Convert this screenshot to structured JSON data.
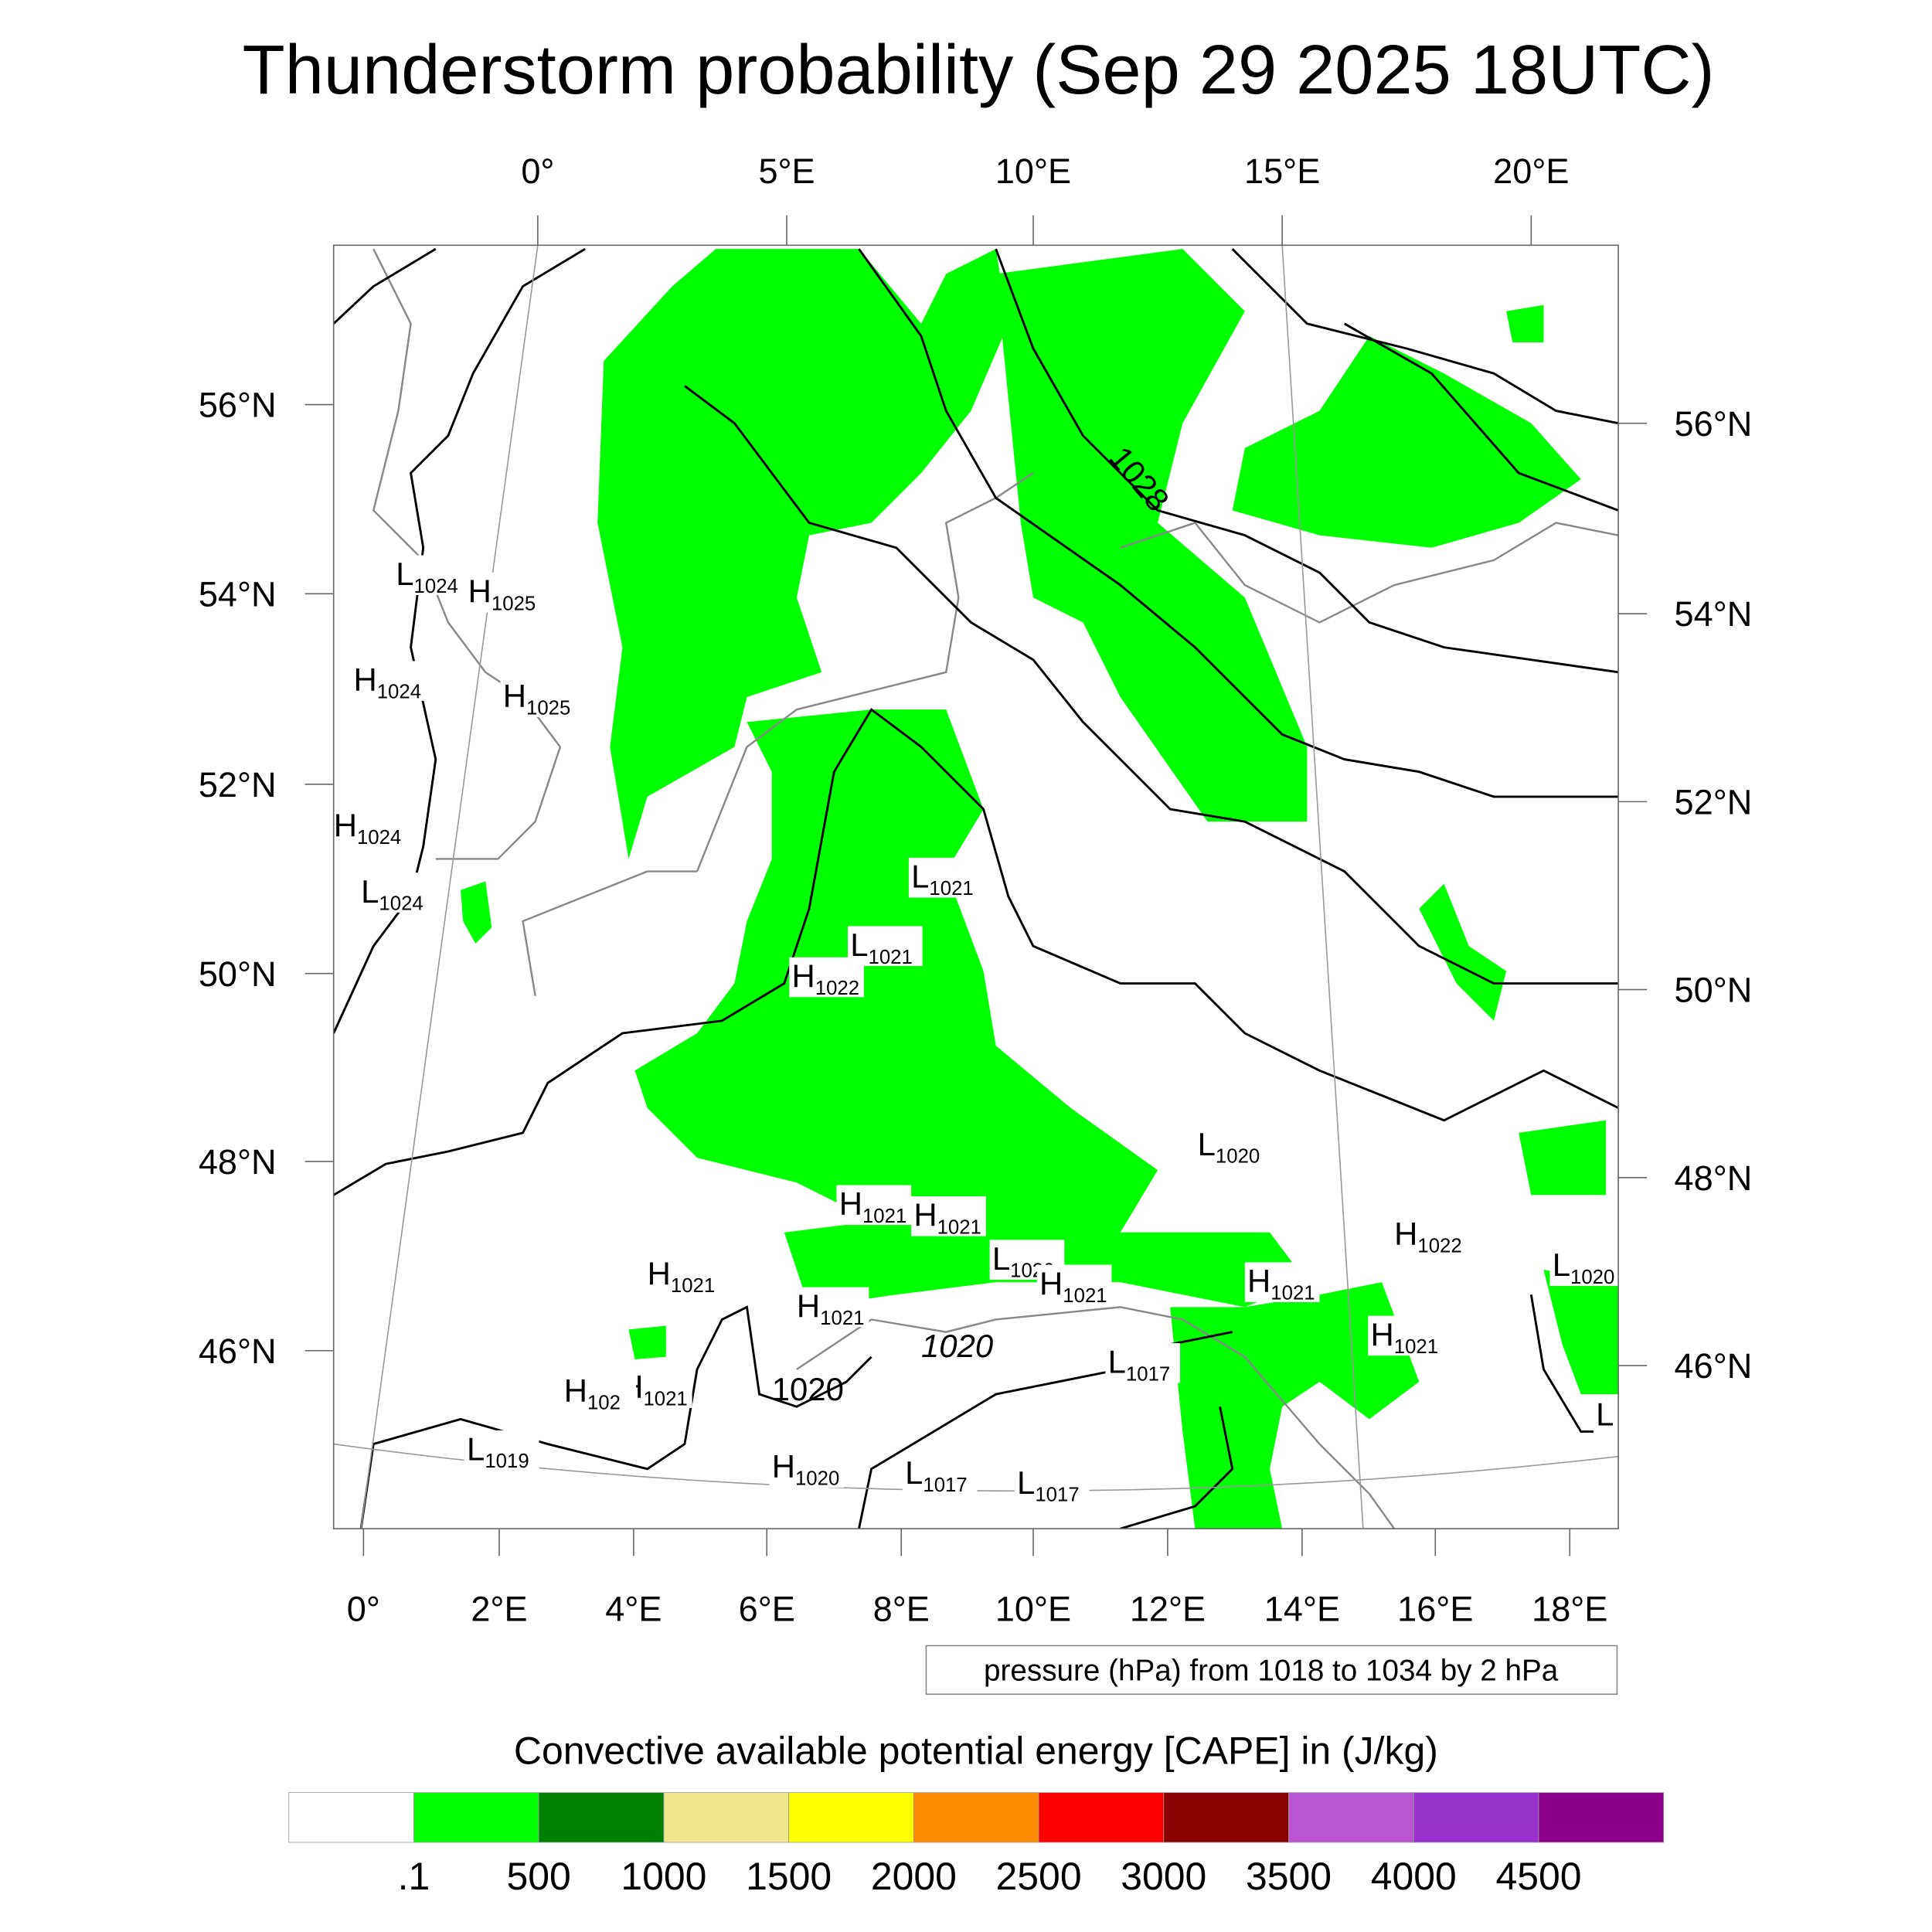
{
  "title": "Thunderstorm probability (Sep 29 2025 18UTC)",
  "axes": {
    "lon_top": [
      "0°",
      "5°E",
      "10°E",
      "15°E",
      "20°E"
    ],
    "lon_bottom": [
      "0°",
      "2°E",
      "4°E",
      "6°E",
      "8°E",
      "10°E",
      "12°E",
      "14°E",
      "16°E",
      "18°E"
    ],
    "lat_left": [
      "56°N",
      "54°N",
      "52°N",
      "50°N",
      "48°N",
      "46°N"
    ],
    "lat_right": [
      "56°N",
      "54°N",
      "52°N",
      "50°N",
      "48°N",
      "46°N"
    ]
  },
  "pressure_note": "pressure (hPa) from 1018 to 1034 by 2 hPa",
  "pressure_labels": [
    {
      "type": "L",
      "value": "1024"
    },
    {
      "type": "H",
      "value": "1025"
    },
    {
      "type": "H",
      "value": "1024"
    },
    {
      "type": "H",
      "value": "1025"
    },
    {
      "type": "H",
      "value": "1024"
    },
    {
      "type": "L",
      "value": "1024"
    },
    {
      "type": "L",
      "value": "1021"
    },
    {
      "type": "L",
      "value": "1021"
    },
    {
      "type": "H",
      "value": "1022"
    },
    {
      "type": "L",
      "value": "1020"
    },
    {
      "type": "H",
      "value": "1021"
    },
    {
      "type": "H",
      "value": "1021"
    },
    {
      "type": "L",
      "value": "1020"
    },
    {
      "type": "H",
      "value": "1021"
    },
    {
      "type": "H",
      "value": "1021"
    },
    {
      "type": "H",
      "value": "1021"
    },
    {
      "type": "H",
      "value": "1021"
    },
    {
      "type": "H",
      "value": "1022"
    },
    {
      "type": "L",
      "value": "1020"
    },
    {
      "type": "H",
      "value": "1021"
    },
    {
      "type": "L",
      "value": "1017"
    },
    {
      "type": "H",
      "value": "1021"
    },
    {
      "type": "H",
      "value": "102"
    },
    {
      "type": "L",
      "value": "1019"
    },
    {
      "type": "H",
      "value": "1020"
    },
    {
      "type": "L",
      "value": "1017"
    },
    {
      "type": "L",
      "value": "1017"
    },
    {
      "type": "L",
      "value": ""
    }
  ],
  "contour_labels": [
    "1028",
    "1020",
    "1020"
  ],
  "chart_data": {
    "type": "heatmap",
    "title": "Thunderstorm probability (Sep 29 2025 18UTC)",
    "colorbar": {
      "title": "Convective available potential energy [CAPE] in (J/kg)",
      "levels": [
        ".1",
        "500",
        "1000",
        "1500",
        "2000",
        "2500",
        "3000",
        "3500",
        "4000",
        "4500"
      ],
      "colors": [
        "#ffffff",
        "#00ff00",
        "#008000",
        "#f0e68c",
        "#ffff00",
        "#ff8c00",
        "#ff0000",
        "#8b0000",
        "#ba55d3",
        "#9932cc",
        "#8b008b"
      ]
    },
    "lon_range": [
      0,
      18.5
    ],
    "lat_range": [
      45,
      57.5
    ]
  }
}
